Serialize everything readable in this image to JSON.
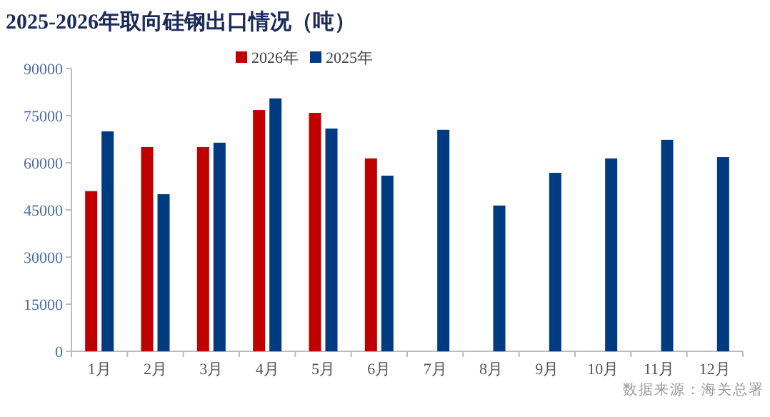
{
  "chart_data": {
    "type": "bar",
    "title": "2025-2026年取向硅钢出口情况（吨）",
    "categories": [
      "1月",
      "2月",
      "3月",
      "4月",
      "5月",
      "6月",
      "7月",
      "8月",
      "9月",
      "10月",
      "11月",
      "12月"
    ],
    "series": [
      {
        "name": "2026年",
        "color": "#c00000",
        "values": [
          51000,
          65000,
          65000,
          76800,
          75900,
          61400,
          null,
          null,
          null,
          null,
          null,
          null
        ]
      },
      {
        "name": "2025年",
        "color": "#003a80",
        "values": [
          70000,
          50000,
          66400,
          80500,
          70900,
          55900,
          70500,
          46400,
          56800,
          61400,
          67300,
          61800
        ]
      }
    ],
    "ylim": [
      0,
      90000
    ],
    "yticks": [
      0,
      15000,
      30000,
      45000,
      60000,
      75000,
      90000
    ],
    "grid": false,
    "legend": "top",
    "annotations": [
      "数据来源：海关总署"
    ]
  }
}
